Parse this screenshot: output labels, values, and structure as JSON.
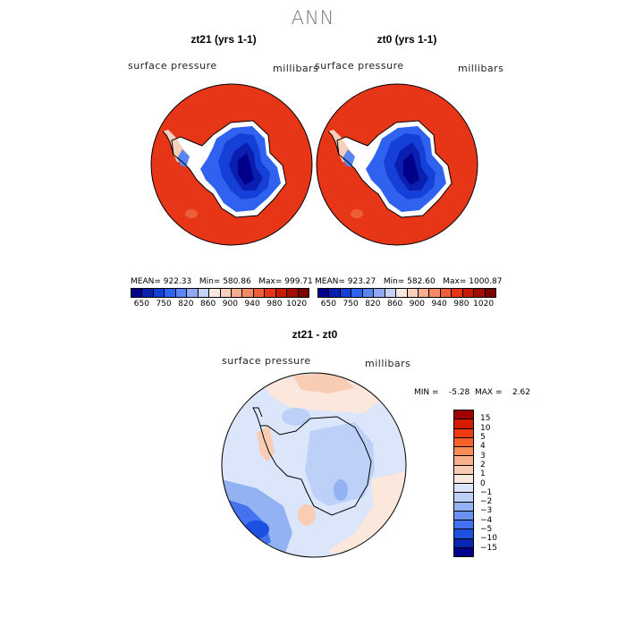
{
  "title": "ANN",
  "panels": {
    "left": {
      "title": "zt21 (yrs 1-1)",
      "variable": "surface pressure",
      "units": "millibars",
      "stats": "MEAN= 922.33   Min= 580.86   Max= 999.71"
    },
    "right": {
      "title": "zt0 (yrs 1-1)",
      "variable": "surface pressure",
      "units": "millibars",
      "stats": "MEAN= 923.27   Min= 582.60   Max= 1000.87"
    },
    "diff": {
      "title": "zt21 - zt0",
      "variable": "surface pressure",
      "units": "millibars",
      "stats": "MIN =    -5.28  MAX =    2.62"
    }
  },
  "colorbar_top": {
    "labels": [
      "650",
      "750",
      "820",
      "860",
      "900",
      "940",
      "980",
      "1020"
    ],
    "colors": [
      "#00008b",
      "#0a1fb0",
      "#1440d8",
      "#2f62ee",
      "#5a86f2",
      "#8fa9f5",
      "#c2d3f7",
      "#f6e8e0",
      "#f7d0bb",
      "#f5ad8d",
      "#f18a65",
      "#ec5f3a",
      "#e63517",
      "#c91a06",
      "#a10d00",
      "#7a0500"
    ]
  },
  "colorbar_diff": {
    "labels": [
      "15",
      "10",
      "5",
      "4",
      "3",
      "2",
      "1",
      "0",
      "−1",
      "−2",
      "−3",
      "−4",
      "−5",
      "−10",
      "−15"
    ],
    "colors": [
      "#a20000",
      "#d41a00",
      "#f03c12",
      "#f8622a",
      "#f98c58",
      "#f7b08b",
      "#f8cdb3",
      "#fbe7dc",
      "#dbe6fb",
      "#bcd0f8",
      "#93b2f4",
      "#6b92f1",
      "#4471ee",
      "#1d4fe0",
      "#0826b0",
      "#00008b"
    ]
  }
}
